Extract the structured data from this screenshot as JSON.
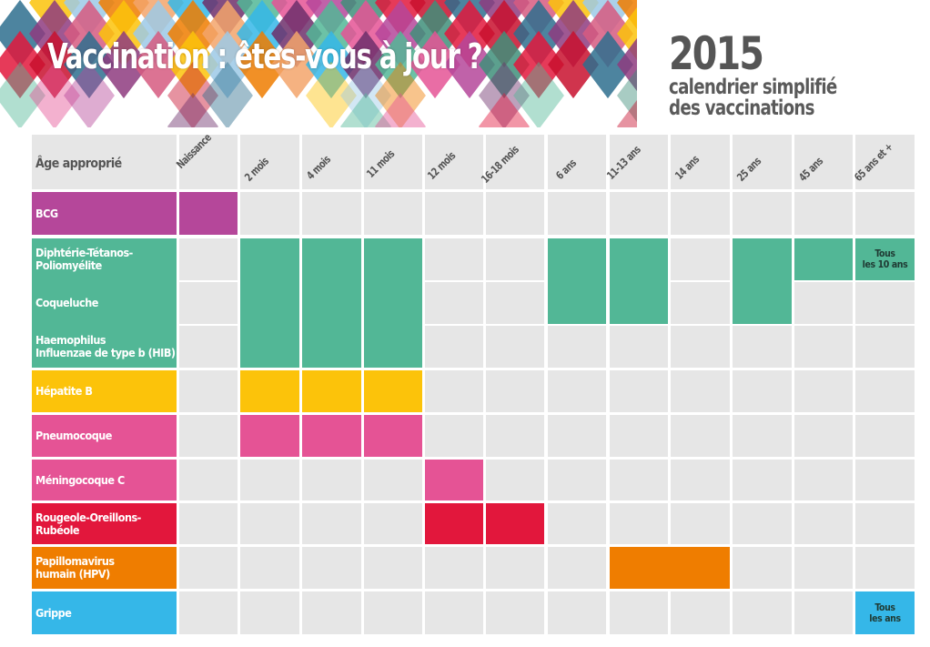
{
  "header": {
    "title": "Vaccination : êtes-vous à jour ?",
    "year": "2015",
    "subtitle_line1": "calendrier simplifié",
    "subtitle_line2": "des vaccinations"
  },
  "colors": {
    "bcg": "#b5479a",
    "dtp": "#52b796",
    "hepatite": "#fcc30a",
    "pneumo": "#e55395",
    "meningo": "#e55395",
    "ror": "#e2173c",
    "hpv": "#ef7d00",
    "grippe": "#35b7e8",
    "cell_empty": "#e6e6e6",
    "text_gray": "#555555"
  },
  "chart_data": {
    "type": "table",
    "title": "Vaccination : êtes-vous à jour ? — 2015 calendrier simplifié des vaccinations",
    "corner_label": "Âge approprié",
    "columns": [
      "Naissance",
      "2 mois",
      "4 mois",
      "11 mois",
      "12 mois",
      "16-18 mois",
      "6 ans",
      "11-13 ans",
      "14 ans",
      "25 ans",
      "45 ans",
      "65 ans et +"
    ],
    "rows": [
      {
        "vaccine": "BCG",
        "ages": [
          "Naissance"
        ]
      },
      {
        "vaccine": "Diphtérie-Tétanos-Poliomyélite",
        "ages": [
          "2 mois",
          "4 mois",
          "11 mois",
          "6 ans",
          "11-13 ans",
          "25 ans",
          "45 ans",
          "65 ans et +"
        ],
        "note_65": "Tous les 10 ans"
      },
      {
        "vaccine": "Coqueluche",
        "ages": [
          "2 mois",
          "4 mois",
          "11 mois",
          "6 ans",
          "11-13 ans",
          "25 ans"
        ]
      },
      {
        "vaccine": "Haemophilus Influenzae de type b (HIB)",
        "ages": [
          "2 mois",
          "4 mois",
          "11 mois"
        ]
      },
      {
        "vaccine": "Hépatite B",
        "ages": [
          "2 mois",
          "4 mois",
          "11 mois"
        ]
      },
      {
        "vaccine": "Pneumocoque",
        "ages": [
          "2 mois",
          "4 mois",
          "11 mois"
        ]
      },
      {
        "vaccine": "Méningocoque C",
        "ages": [
          "12 mois"
        ]
      },
      {
        "vaccine": "Rougeole-Oreillons-Rubéole",
        "ages": [
          "12 mois",
          "16-18 mois"
        ]
      },
      {
        "vaccine": "Papillomavirus humain (HPV)",
        "ages": [
          "11-13 ans",
          "14 ans"
        ]
      },
      {
        "vaccine": "Grippe",
        "ages": [
          "65 ans et +"
        ],
        "note_65": "Tous les ans"
      }
    ]
  },
  "table": {
    "corner_label": "Âge approprié",
    "columns": [
      "Naissance",
      "2 mois",
      "4 mois",
      "11 mois",
      "12 mois",
      "16-18 mois",
      "6 ans",
      "11-13 ans",
      "14 ans",
      "25 ans",
      "45 ans",
      "65 ans et +"
    ],
    "labels": {
      "bcg": "BCG",
      "dtp1": "Diphtérie-Tétanos-",
      "dtp2": "Poliomyélite",
      "coq": "Coqueluche",
      "hib1": "Haemophilus",
      "hib2": "Influenzae de type b (HIB)",
      "hep": "Hépatite B",
      "pneumo": "Pneumocoque",
      "meningo": "Méningocoque C",
      "ror1": "Rougeole-Oreillons-",
      "ror2": "Rubéole",
      "hpv1": "Papillomavirus",
      "hpv2": "humain (HPV)",
      "grippe": "Grippe"
    },
    "notes": {
      "dtp_65_line1": "Tous",
      "dtp_65_line2": "les 10 ans",
      "grippe_65_line1": "Tous",
      "grippe_65_line2": "les ans"
    }
  }
}
